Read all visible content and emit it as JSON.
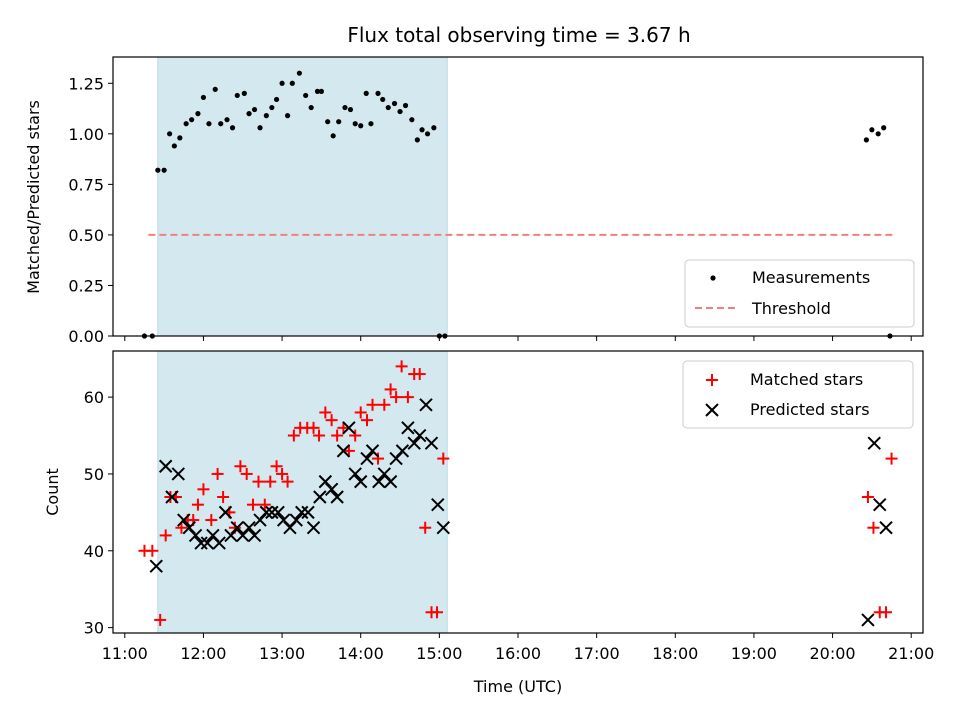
{
  "figure": {
    "title": "Flux total observing time = 3.67 h",
    "xlabel": "Time (UTC)",
    "x_ticks": [
      "11:00",
      "12:00",
      "13:00",
      "14:00",
      "15:00",
      "16:00",
      "17:00",
      "18:00",
      "19:00",
      "20:00",
      "21:00"
    ]
  },
  "chart_data": [
    {
      "type": "scatter",
      "ylabel": "Matched/Predicted stars",
      "xlim": [
        10.85,
        21.15
      ],
      "ylim": [
        0.0,
        1.38
      ],
      "y_ticks": [
        "0.00",
        "0.25",
        "0.50",
        "0.75",
        "1.00",
        "1.25"
      ],
      "shaded_interval": {
        "x": [
          11.42,
          15.1
        ],
        "color": "#d3e9ef"
      },
      "legend_position": "lower right",
      "series": [
        {
          "name": "Measurements",
          "color": "#000000",
          "marker": "dot",
          "x": [
            11.25,
            11.35,
            11.42,
            11.5,
            11.57,
            11.63,
            11.7,
            11.78,
            11.85,
            11.93,
            12.0,
            12.07,
            12.15,
            12.22,
            12.3,
            12.37,
            12.43,
            12.52,
            12.58,
            12.65,
            12.72,
            12.8,
            12.87,
            12.93,
            13.0,
            13.07,
            13.13,
            13.22,
            13.3,
            13.37,
            13.45,
            13.5,
            13.58,
            13.65,
            13.72,
            13.8,
            13.87,
            13.93,
            14.0,
            14.07,
            14.13,
            14.22,
            14.28,
            14.35,
            14.43,
            14.5,
            14.57,
            14.65,
            14.72,
            14.78,
            14.85,
            14.93,
            15.0,
            15.07,
            20.43,
            20.5,
            20.58,
            20.65,
            20.73
          ],
          "y": [
            0.0,
            0.0,
            0.82,
            0.82,
            1.0,
            0.94,
            0.98,
            1.05,
            1.07,
            1.1,
            1.18,
            1.05,
            1.22,
            1.05,
            1.07,
            1.03,
            1.19,
            1.2,
            1.1,
            1.12,
            1.03,
            1.09,
            1.13,
            1.17,
            1.25,
            1.09,
            1.25,
            1.3,
            1.19,
            1.13,
            1.21,
            1.21,
            1.06,
            0.99,
            1.06,
            1.13,
            1.12,
            1.05,
            1.04,
            1.2,
            1.05,
            1.2,
            1.17,
            1.13,
            1.15,
            1.11,
            1.14,
            1.07,
            0.97,
            1.02,
            1.0,
            1.03,
            0.0,
            0.0,
            0.97,
            1.02,
            1.0,
            1.03,
            0.0
          ]
        },
        {
          "name": "Threshold",
          "color": "#f08080",
          "marker": "dashed-line",
          "x": [
            11.3,
            20.8
          ],
          "y": [
            0.5,
            0.5
          ]
        }
      ]
    },
    {
      "type": "scatter",
      "ylabel": "Count",
      "xlim": [
        10.85,
        21.15
      ],
      "ylim": [
        29.3,
        66.0
      ],
      "y_ticks": [
        "30",
        "40",
        "50",
        "60"
      ],
      "shaded_interval": {
        "x": [
          11.42,
          15.1
        ],
        "color": "#d3e9ef"
      },
      "legend_position": "upper right",
      "series": [
        {
          "name": "Matched stars",
          "color": "#ff0000",
          "marker": "plus",
          "x": [
            11.25,
            11.35,
            11.45,
            11.52,
            11.58,
            11.65,
            11.72,
            11.8,
            11.87,
            11.93,
            12.0,
            12.1,
            12.18,
            12.25,
            12.33,
            12.4,
            12.47,
            12.55,
            12.63,
            12.7,
            12.78,
            12.85,
            12.93,
            13.0,
            13.07,
            13.15,
            13.23,
            13.32,
            13.4,
            13.47,
            13.55,
            13.63,
            13.7,
            13.78,
            13.85,
            13.93,
            14.0,
            14.08,
            14.15,
            14.22,
            14.3,
            14.38,
            14.45,
            14.52,
            14.6,
            14.68,
            14.75,
            14.82,
            14.9,
            14.97,
            15.05,
            20.45,
            20.52,
            20.6,
            20.68,
            20.75
          ],
          "y": [
            40,
            40,
            31,
            42,
            47,
            47,
            43,
            44,
            44,
            46,
            48,
            44,
            50,
            47,
            45,
            43,
            51,
            50,
            46,
            49,
            46,
            49,
            51,
            50,
            49,
            55,
            56,
            56,
            56,
            55,
            58,
            57,
            55,
            56,
            53,
            55,
            58,
            57,
            59,
            52,
            59,
            61,
            60,
            64,
            60,
            63,
            63,
            43,
            32,
            32,
            52,
            47,
            43,
            32,
            32,
            52
          ]
        },
        {
          "name": "Predicted stars",
          "color": "#000000",
          "marker": "x",
          "x": [
            11.4,
            11.52,
            11.6,
            11.68,
            11.75,
            11.82,
            11.9,
            11.97,
            12.05,
            12.12,
            12.2,
            12.28,
            12.35,
            12.43,
            12.5,
            12.58,
            12.65,
            12.72,
            12.8,
            12.87,
            12.95,
            13.02,
            13.1,
            13.18,
            13.25,
            13.33,
            13.4,
            13.48,
            13.55,
            13.63,
            13.7,
            13.78,
            13.85,
            13.93,
            14.0,
            14.08,
            14.15,
            14.23,
            14.3,
            14.38,
            14.45,
            14.53,
            14.6,
            14.68,
            14.75,
            14.83,
            14.9,
            14.98,
            15.05,
            20.45,
            20.53,
            20.6,
            20.68
          ],
          "y": [
            38,
            51,
            47,
            50,
            44,
            43,
            42,
            41,
            41,
            42,
            41,
            45,
            42,
            43,
            42,
            43,
            42,
            44,
            45,
            45,
            45,
            44,
            43,
            44,
            45,
            45,
            43,
            47,
            49,
            48,
            47,
            53,
            56,
            50,
            49,
            52,
            53,
            49,
            50,
            49,
            52,
            53,
            56,
            54,
            55,
            59,
            54,
            46,
            43,
            31,
            54,
            46,
            43
          ]
        }
      ]
    }
  ]
}
